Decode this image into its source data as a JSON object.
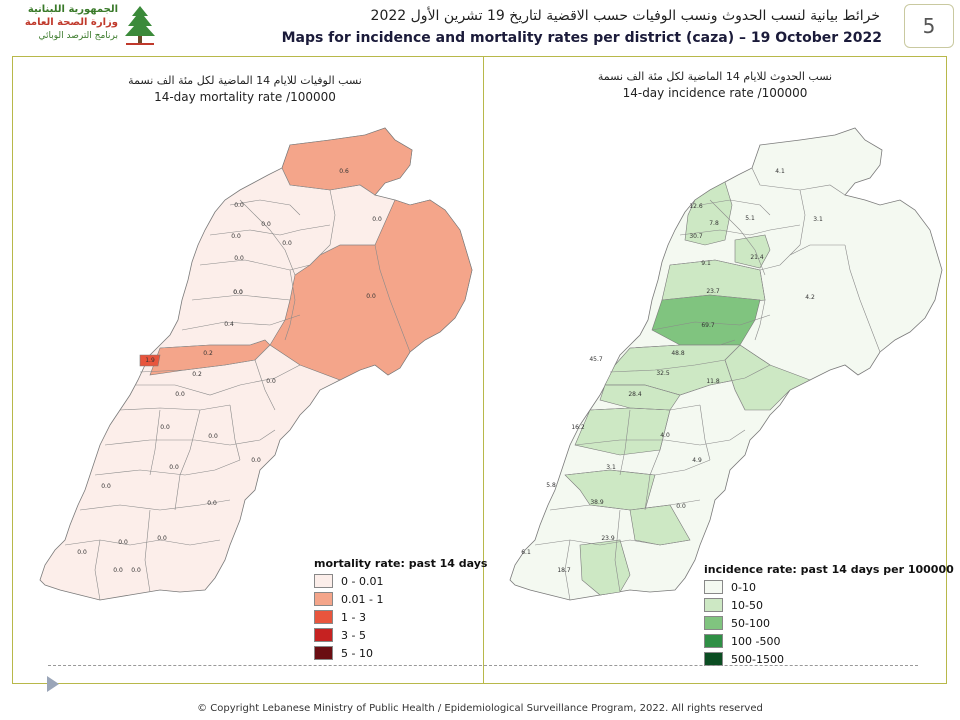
{
  "header": {
    "logo_line1": "الجمهورية اللبنانية",
    "logo_line2": "وزارة الصحة العامة",
    "logo_line3": "برنامج الترصد الوبائي",
    "title_ar": "خرائط بيانية لنسب الحدوث ونسب الوفيات حسب الاقضية لتاريخ 19 تشرين الأول 2022",
    "title_en": "Maps for incidence and mortality rates per district (caza) – 19 October 2022",
    "page_number": "5"
  },
  "mortality": {
    "title_ar": "نسب الوفيات للايام 14 الماضية لكل مئة الف نسمة",
    "title_en": "14-day mortality rate /100000",
    "legend_title": "mortality rate: past 14 days",
    "legend": [
      {
        "label": "0 - 0.01",
        "color": "#fceeea"
      },
      {
        "label": "0.01 - 1",
        "color": "#f4a58a"
      },
      {
        "label": "1 - 3",
        "color": "#e8553d"
      },
      {
        "label": "3 - 5",
        "color": "#c62221"
      },
      {
        "label": "5 - 10",
        "color": "#6a0d12"
      }
    ],
    "labels": [
      "0.6",
      "0.0",
      "0.0",
      "0.0",
      "0.0",
      "0.0",
      "0.0",
      "0.0",
      "0.4",
      "0.0",
      "1.9",
      "0.2",
      "0.2",
      "0.0",
      "0.0",
      "0.0",
      "0.0",
      "0.0",
      "0.0",
      "0.0",
      "0.0",
      "0.0",
      "0.0",
      "0.0",
      "0.0",
      "0.0",
      "0.0"
    ]
  },
  "incidence": {
    "title_ar": "نسب الحدوث للايام 14 الماضية لكل مئة الف نسمة",
    "title_en": "14-day incidence rate /100000",
    "legend_title": "incidence rate: past 14 days per 100000",
    "legend": [
      {
        "label": "0-10",
        "color": "#f4f9f1"
      },
      {
        "label": "10-50",
        "color": "#cde8c4"
      },
      {
        "label": "50-100",
        "color": "#80c47f"
      },
      {
        "label": "100 -500",
        "color": "#2f8f45"
      },
      {
        "label": "500-1500",
        "color": "#0b4d22"
      }
    ],
    "labels": [
      "4.1",
      "12.6",
      "7.8",
      "5.1",
      "3.1",
      "30.7",
      "9.1",
      "21.4",
      "4.2",
      "23.7",
      "69.7",
      "45.7",
      "48.8",
      "32.5",
      "11.8",
      "28.4",
      "16.2",
      "4.0",
      "4.9",
      "3.1",
      "5.8",
      "38.9",
      "0.0",
      "23.9",
      "6.1",
      "18.7"
    ]
  },
  "footer": "© Copyright Lebanese Ministry of Public Health / Epidemiological Surveillance Program, 2022. All rights reserved"
}
